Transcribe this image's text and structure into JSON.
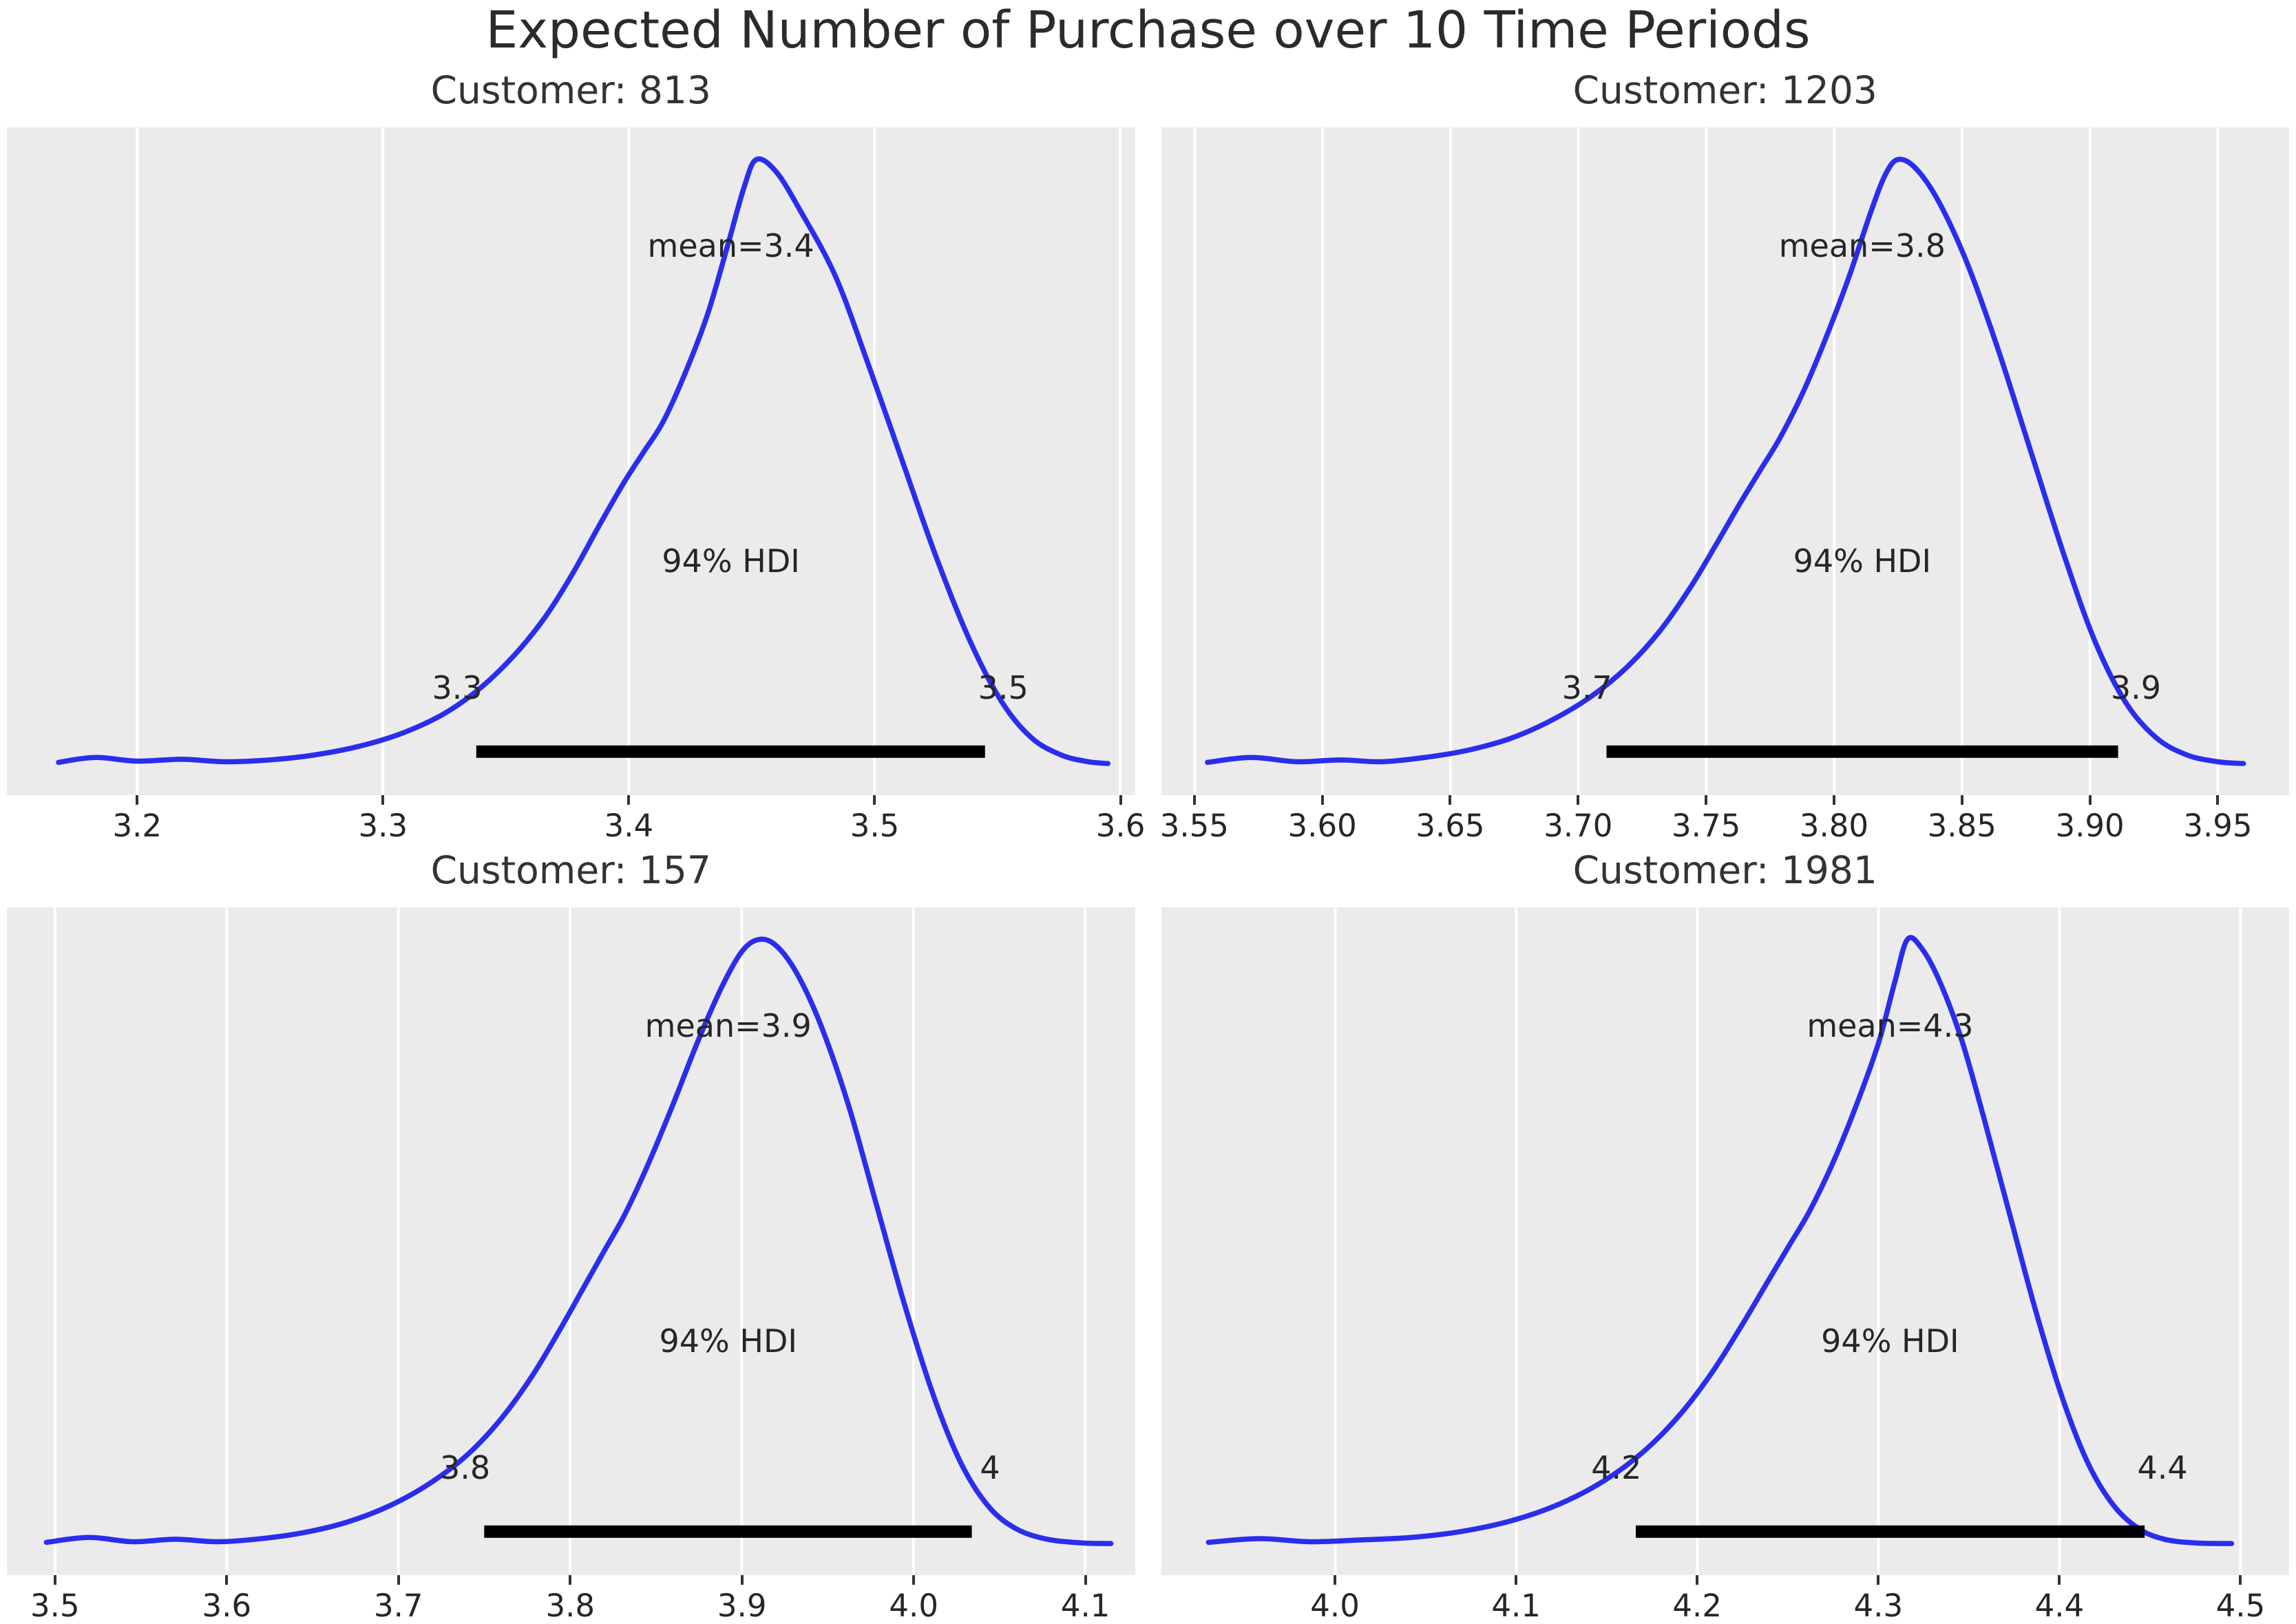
{
  "suptitle": "Expected Number of Purchase over 10 Time Periods",
  "colors": {
    "curve": "#2a2eec",
    "panel_bg": "#ebebeb",
    "gridline": "#ffffff",
    "hdi_bar": "#000000",
    "text": "#262626"
  },
  "chart_data": [
    {
      "type": "line",
      "title": "Customer: 813",
      "mean": 3.4,
      "mean_label": "mean=3.4",
      "hdi_label": "94% HDI",
      "hdi_low_label": "3.3",
      "hdi_high_label": "3.5",
      "hdi_interval": [
        3.3,
        3.5
      ],
      "hdi_bar": [
        3.338,
        3.545
      ],
      "xlim": [
        3.147,
        3.606
      ],
      "grid": true,
      "xticks": [
        {
          "value": 3.2,
          "label": "3.2"
        },
        {
          "value": 3.3,
          "label": "3.3"
        },
        {
          "value": 3.4,
          "label": "3.4"
        },
        {
          "value": 3.5,
          "label": "3.5"
        },
        {
          "value": 3.6,
          "label": "3.6"
        }
      ],
      "curve": [
        [
          3.168,
          0.012
        ],
        [
          3.183,
          0.02
        ],
        [
          3.2,
          0.014
        ],
        [
          3.218,
          0.017
        ],
        [
          3.236,
          0.013
        ],
        [
          3.254,
          0.016
        ],
        [
          3.272,
          0.024
        ],
        [
          3.29,
          0.038
        ],
        [
          3.308,
          0.06
        ],
        [
          3.325,
          0.092
        ],
        [
          3.34,
          0.135
        ],
        [
          3.354,
          0.19
        ],
        [
          3.366,
          0.25
        ],
        [
          3.377,
          0.32
        ],
        [
          3.388,
          0.4
        ],
        [
          3.398,
          0.47
        ],
        [
          3.406,
          0.52
        ],
        [
          3.414,
          0.57
        ],
        [
          3.423,
          0.65
        ],
        [
          3.432,
          0.745
        ],
        [
          3.44,
          0.855
        ],
        [
          3.447,
          0.955
        ],
        [
          3.452,
          1.0
        ],
        [
          3.46,
          0.98
        ],
        [
          3.47,
          0.915
        ],
        [
          3.484,
          0.81
        ],
        [
          3.497,
          0.67
        ],
        [
          3.511,
          0.51
        ],
        [
          3.525,
          0.35
        ],
        [
          3.539,
          0.21
        ],
        [
          3.552,
          0.11
        ],
        [
          3.564,
          0.052
        ],
        [
          3.576,
          0.024
        ],
        [
          3.587,
          0.013
        ],
        [
          3.595,
          0.01
        ]
      ]
    },
    {
      "type": "line",
      "title": "Customer: 1203",
      "mean": 3.8,
      "mean_label": "mean=3.8",
      "hdi_label": "94% HDI",
      "hdi_low_label": "3.7",
      "hdi_high_label": "3.9",
      "hdi_interval": [
        3.7,
        3.9
      ],
      "hdi_bar": [
        3.711,
        3.911
      ],
      "xlim": [
        3.537,
        3.978
      ],
      "grid": true,
      "xticks": [
        {
          "value": 3.55,
          "label": "3.55"
        },
        {
          "value": 3.6,
          "label": "3.60"
        },
        {
          "value": 3.65,
          "label": "3.65"
        },
        {
          "value": 3.7,
          "label": "3.70"
        },
        {
          "value": 3.75,
          "label": "3.75"
        },
        {
          "value": 3.8,
          "label": "3.80"
        },
        {
          "value": 3.85,
          "label": "3.85"
        },
        {
          "value": 3.9,
          "label": "3.90"
        },
        {
          "value": 3.95,
          "label": "3.95"
        }
      ],
      "curve": [
        [
          3.555,
          0.012
        ],
        [
          3.572,
          0.02
        ],
        [
          3.59,
          0.013
        ],
        [
          3.607,
          0.016
        ],
        [
          3.623,
          0.013
        ],
        [
          3.64,
          0.02
        ],
        [
          3.657,
          0.032
        ],
        [
          3.674,
          0.052
        ],
        [
          3.69,
          0.082
        ],
        [
          3.705,
          0.12
        ],
        [
          3.719,
          0.168
        ],
        [
          3.732,
          0.228
        ],
        [
          3.744,
          0.3
        ],
        [
          3.754,
          0.37
        ],
        [
          3.763,
          0.435
        ],
        [
          3.771,
          0.49
        ],
        [
          3.779,
          0.545
        ],
        [
          3.788,
          0.62
        ],
        [
          3.797,
          0.71
        ],
        [
          3.806,
          0.81
        ],
        [
          3.814,
          0.91
        ],
        [
          3.82,
          0.975
        ],
        [
          3.825,
          1.0
        ],
        [
          3.832,
          0.985
        ],
        [
          3.841,
          0.93
        ],
        [
          3.852,
          0.83
        ],
        [
          3.864,
          0.69
        ],
        [
          3.877,
          0.52
        ],
        [
          3.89,
          0.35
        ],
        [
          3.902,
          0.21
        ],
        [
          3.914,
          0.11
        ],
        [
          3.926,
          0.052
        ],
        [
          3.938,
          0.024
        ],
        [
          3.95,
          0.013
        ],
        [
          3.96,
          0.01
        ]
      ]
    },
    {
      "type": "line",
      "title": "Customer: 157",
      "mean": 3.9,
      "mean_label": "mean=3.9",
      "hdi_label": "94% HDI",
      "hdi_low_label": "3.8",
      "hdi_high_label": "4",
      "hdi_interval": [
        3.8,
        4.0
      ],
      "hdi_bar": [
        3.75,
        4.034
      ],
      "xlim": [
        3.472,
        4.129
      ],
      "grid": true,
      "xticks": [
        {
          "value": 3.5,
          "label": "3.5"
        },
        {
          "value": 3.6,
          "label": "3.6"
        },
        {
          "value": 3.7,
          "label": "3.7"
        },
        {
          "value": 3.8,
          "label": "3.8"
        },
        {
          "value": 3.9,
          "label": "3.9"
        },
        {
          "value": 4.0,
          "label": "4.0"
        },
        {
          "value": 4.1,
          "label": "4.1"
        }
      ],
      "curve": [
        [
          3.495,
          0.012
        ],
        [
          3.52,
          0.02
        ],
        [
          3.545,
          0.013
        ],
        [
          3.57,
          0.017
        ],
        [
          3.595,
          0.013
        ],
        [
          3.62,
          0.018
        ],
        [
          3.645,
          0.028
        ],
        [
          3.67,
          0.045
        ],
        [
          3.695,
          0.072
        ],
        [
          3.718,
          0.108
        ],
        [
          3.74,
          0.155
        ],
        [
          3.76,
          0.215
        ],
        [
          3.778,
          0.285
        ],
        [
          3.794,
          0.36
        ],
        [
          3.808,
          0.43
        ],
        [
          3.82,
          0.49
        ],
        [
          3.832,
          0.55
        ],
        [
          3.846,
          0.635
        ],
        [
          3.86,
          0.73
        ],
        [
          3.874,
          0.83
        ],
        [
          3.888,
          0.92
        ],
        [
          3.9,
          0.98
        ],
        [
          3.91,
          1.0
        ],
        [
          3.92,
          0.99
        ],
        [
          3.932,
          0.945
        ],
        [
          3.946,
          0.86
        ],
        [
          3.962,
          0.73
        ],
        [
          3.978,
          0.57
        ],
        [
          3.995,
          0.4
        ],
        [
          4.012,
          0.25
        ],
        [
          4.028,
          0.14
        ],
        [
          4.044,
          0.07
        ],
        [
          4.06,
          0.034
        ],
        [
          4.078,
          0.017
        ],
        [
          4.098,
          0.011
        ],
        [
          4.115,
          0.01
        ]
      ]
    },
    {
      "type": "line",
      "title": "Customer: 1981",
      "mean": 4.3,
      "mean_label": "mean=4.3",
      "hdi_label": "94% HDI",
      "hdi_low_label": "4.2",
      "hdi_high_label": "4.4",
      "hdi_interval": [
        4.2,
        4.4
      ],
      "hdi_bar": [
        4.166,
        4.447
      ],
      "xlim": [
        3.904,
        4.527
      ],
      "grid": true,
      "xticks": [
        {
          "value": 4.0,
          "label": "4.0"
        },
        {
          "value": 4.1,
          "label": "4.1"
        },
        {
          "value": 4.2,
          "label": "4.2"
        },
        {
          "value": 4.3,
          "label": "4.3"
        },
        {
          "value": 4.4,
          "label": "4.4"
        },
        {
          "value": 4.5,
          "label": "4.5"
        }
      ],
      "curve": [
        [
          3.93,
          0.012
        ],
        [
          3.958,
          0.018
        ],
        [
          3.986,
          0.013
        ],
        [
          4.014,
          0.016
        ],
        [
          4.042,
          0.02
        ],
        [
          4.07,
          0.03
        ],
        [
          4.098,
          0.048
        ],
        [
          4.124,
          0.075
        ],
        [
          4.148,
          0.112
        ],
        [
          4.17,
          0.16
        ],
        [
          4.19,
          0.22
        ],
        [
          4.208,
          0.29
        ],
        [
          4.224,
          0.365
        ],
        [
          4.238,
          0.435
        ],
        [
          4.25,
          0.495
        ],
        [
          4.262,
          0.555
        ],
        [
          4.275,
          0.635
        ],
        [
          4.288,
          0.73
        ],
        [
          4.3,
          0.83
        ],
        [
          4.309,
          0.93
        ],
        [
          4.316,
          1.0
        ],
        [
          4.324,
          0.985
        ],
        [
          4.334,
          0.93
        ],
        [
          4.346,
          0.835
        ],
        [
          4.358,
          0.71
        ],
        [
          4.372,
          0.555
        ],
        [
          4.387,
          0.39
        ],
        [
          4.402,
          0.245
        ],
        [
          4.416,
          0.14
        ],
        [
          4.43,
          0.072
        ],
        [
          4.444,
          0.034
        ],
        [
          4.458,
          0.017
        ],
        [
          4.475,
          0.011
        ],
        [
          4.495,
          0.01
        ]
      ]
    }
  ]
}
